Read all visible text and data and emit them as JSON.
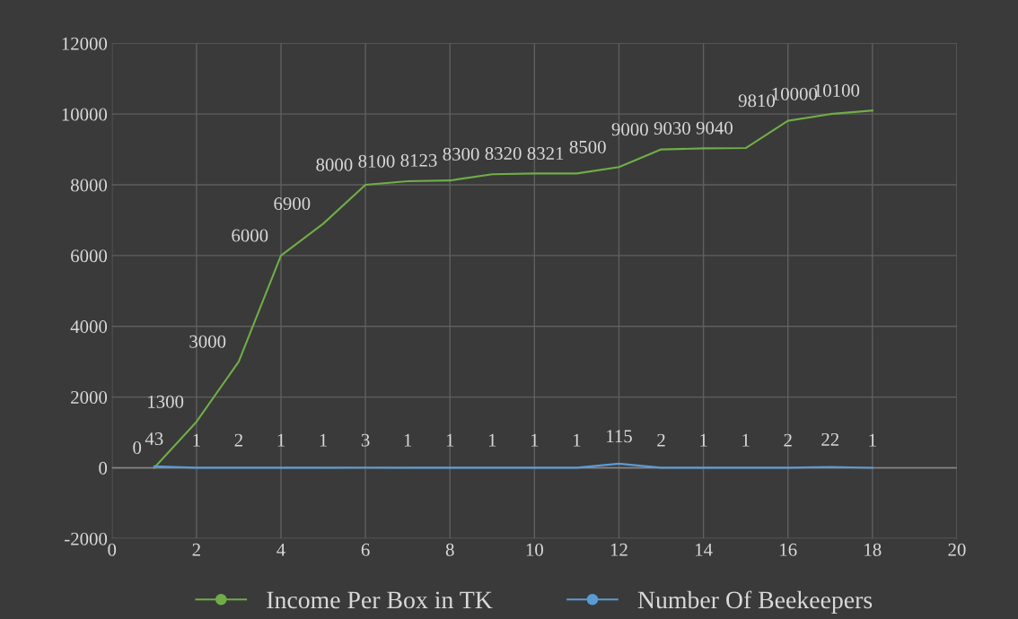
{
  "chart_data": {
    "type": "line",
    "x": [
      1,
      2,
      3,
      4,
      5,
      6,
      7,
      8,
      9,
      10,
      11,
      12,
      13,
      14,
      15,
      16,
      17,
      18
    ],
    "series": [
      {
        "name": "Income Per Box in TK",
        "color": "#70ad47",
        "values": [
          0,
          1300,
          3000,
          6000,
          6900,
          8000,
          8100,
          8123,
          8300,
          8320,
          8321,
          8500,
          9000,
          9030,
          9040,
          9810,
          10000,
          10100
        ]
      },
      {
        "name": "Number Of Beekeepers",
        "color": "#5b9bd5",
        "values": [
          43,
          1,
          2,
          1,
          1,
          3,
          1,
          1,
          1,
          1,
          1,
          115,
          2,
          1,
          1,
          2,
          22,
          1
        ]
      }
    ],
    "xlim": [
      0,
      20
    ],
    "xticks": [
      0,
      2,
      4,
      6,
      8,
      10,
      12,
      14,
      16,
      18,
      20
    ],
    "ylim": [
      -2000,
      12000
    ],
    "yticks": [
      -2000,
      0,
      2000,
      4000,
      6000,
      8000,
      10000,
      12000
    ],
    "grid": true,
    "legend": "bottom",
    "data_labels": true,
    "line_style": "solid"
  }
}
